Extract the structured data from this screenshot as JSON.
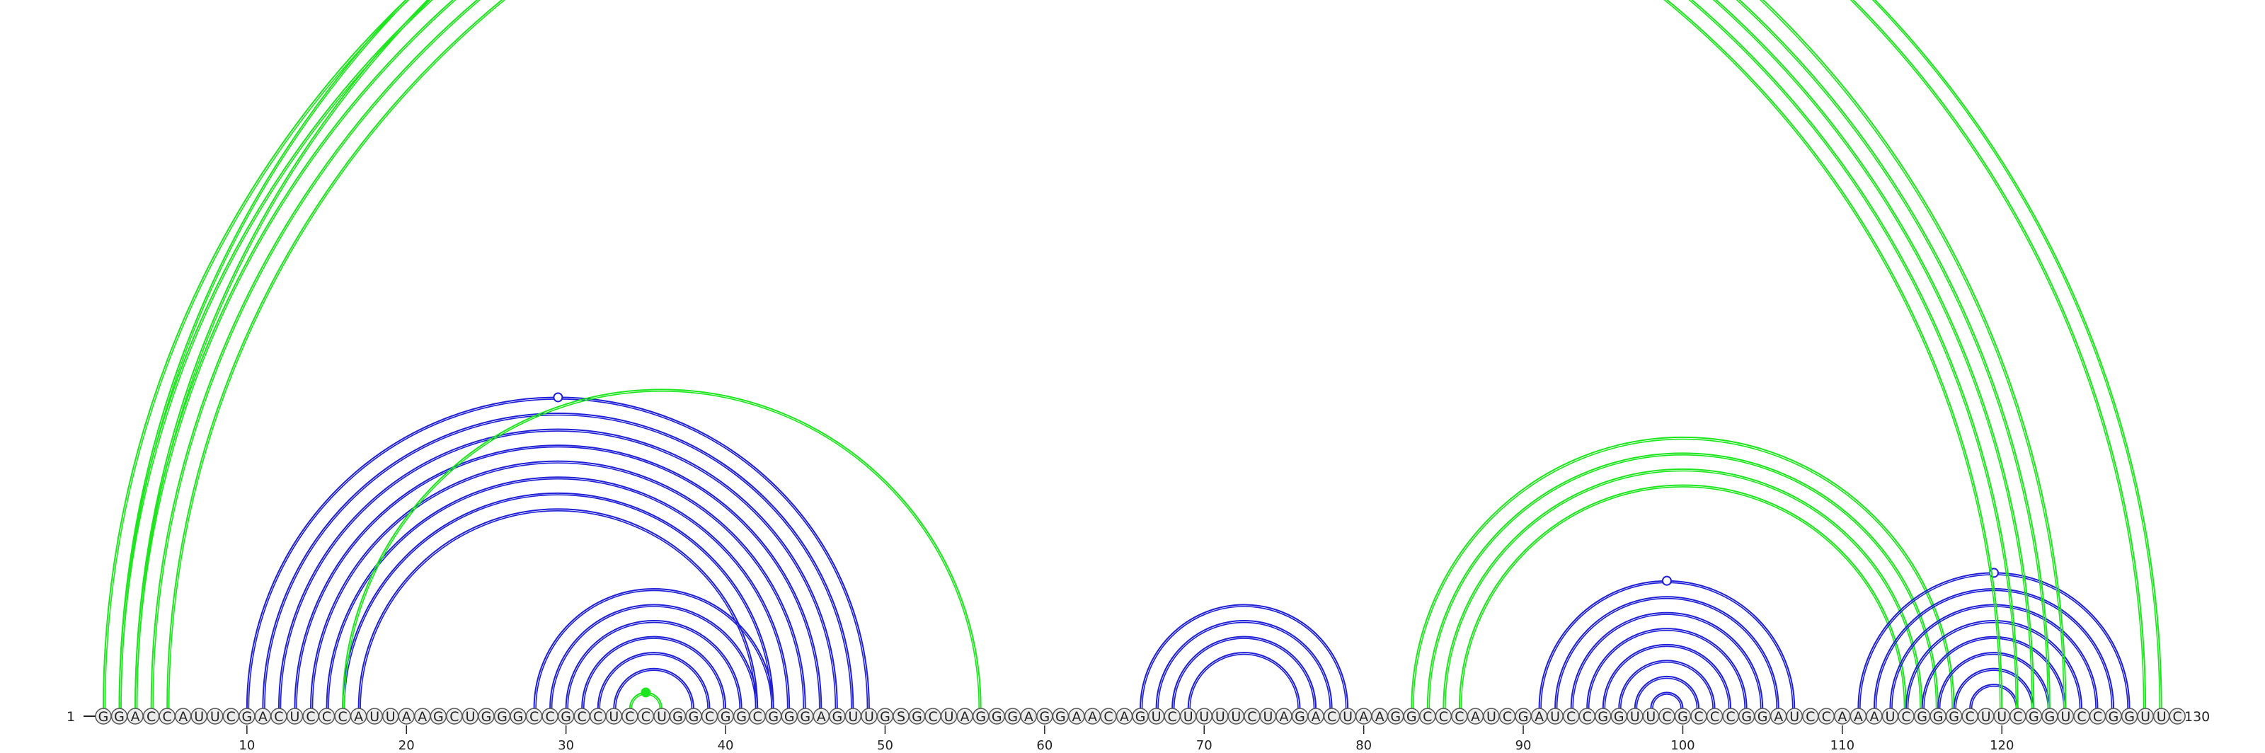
{
  "sequence": {
    "start_label": "1",
    "end_label": "130",
    "nucleotides": "GGACCAUUCGACUCCCAUUAAGCUGGGCCGCCUCCUGGCGGCGGGAGUUGSGCUAGGGAGGAACAGUCUUUUCUAGACUAAGGCCCAUCGAUCCGGUUCGCCCGGAUCCAAAUCGGGCUUCGGUCCGGUUC"
  },
  "axis": {
    "ticks": [
      10,
      20,
      30,
      40,
      50,
      60,
      70,
      80,
      90,
      100,
      110,
      120
    ]
  },
  "colors": {
    "blue_pair": "#1f1fd8",
    "green_pair": "#1ee61e",
    "nucleotide_fill": "#ececec",
    "nucleotide_stroke": "#555555",
    "line": "#222222"
  },
  "arc_groups": [
    {
      "color": "blue",
      "pairs": [
        [
          10,
          49
        ],
        [
          11,
          48
        ],
        [
          12,
          47
        ],
        [
          13,
          46
        ],
        [
          14,
          45
        ],
        [
          15,
          44
        ],
        [
          16,
          43
        ],
        [
          17,
          42
        ]
      ],
      "open_marker": true
    },
    {
      "color": "blue",
      "pairs": [
        [
          28,
          43
        ],
        [
          29,
          42
        ],
        [
          30,
          41
        ],
        [
          31,
          40
        ],
        [
          32,
          39
        ],
        [
          33,
          38
        ]
      ]
    },
    {
      "color": "green",
      "pairs": [
        [
          34,
          36
        ]
      ],
      "filled_marker": true
    },
    {
      "color": "green",
      "pairs": [
        [
          16,
          56
        ]
      ]
    },
    {
      "color": "blue",
      "pairs": [
        [
          66,
          79
        ],
        [
          67,
          78
        ],
        [
          68,
          77
        ],
        [
          69,
          76
        ]
      ]
    },
    {
      "color": "blue",
      "pairs": [
        [
          91,
          107
        ],
        [
          92,
          106
        ],
        [
          93,
          105
        ],
        [
          94,
          104
        ],
        [
          95,
          103
        ],
        [
          96,
          102
        ],
        [
          97,
          101
        ],
        [
          98,
          100
        ]
      ],
      "open_marker": true
    },
    {
      "color": "green",
      "pairs": [
        [
          83,
          117
        ],
        [
          84,
          116
        ],
        [
          85,
          115
        ],
        [
          86,
          114
        ]
      ]
    },
    {
      "color": "blue",
      "pairs": [
        [
          111,
          128
        ],
        [
          112,
          127
        ],
        [
          113,
          126
        ],
        [
          114,
          125
        ],
        [
          115,
          124
        ],
        [
          116,
          123
        ],
        [
          117,
          122
        ],
        [
          118,
          121
        ]
      ],
      "open_marker": true
    },
    {
      "color": "green",
      "pairs": [
        [
          1,
          124
        ],
        [
          2,
          123
        ],
        [
          3,
          122
        ],
        [
          4,
          121
        ],
        [
          5,
          120
        ]
      ]
    },
    {
      "color": "green",
      "pairs": [
        [
          2,
          130
        ],
        [
          3,
          129
        ]
      ],
      "open_marker": true
    }
  ]
}
